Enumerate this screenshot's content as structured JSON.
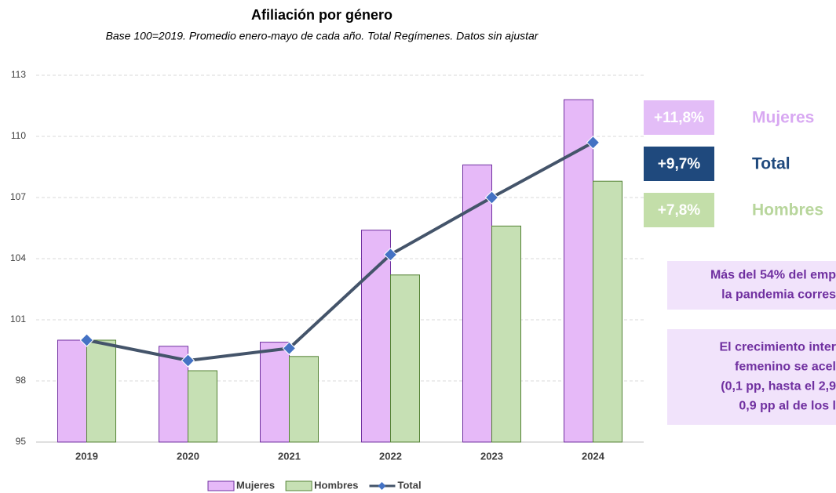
{
  "chart_data": {
    "type": "bar",
    "title": "Afiliación por género",
    "subtitle": "Base 100=2019. Promedio enero-mayo de cada año. Total Regímenes. Datos sin ajustar",
    "categories": [
      "2019",
      "2020",
      "2021",
      "2022",
      "2023",
      "2024"
    ],
    "series": [
      {
        "name": "Mujeres",
        "type": "bar",
        "color": "#e6b9f8",
        "stroke": "#7030a0",
        "values": [
          100.0,
          99.7,
          99.9,
          105.4,
          108.6,
          111.8
        ]
      },
      {
        "name": "Hombres",
        "type": "bar",
        "color": "#c6e0b4",
        "stroke": "#548235",
        "values": [
          100.0,
          98.5,
          99.2,
          103.2,
          105.6,
          107.8
        ]
      },
      {
        "name": "Total",
        "type": "line",
        "color": "#44546a",
        "marker_color": "#4472c4",
        "values": [
          100.0,
          99.0,
          99.6,
          104.2,
          107.0,
          109.7
        ]
      }
    ],
    "ylim": [
      95,
      113
    ],
    "yticks": [
      95,
      98,
      101,
      104,
      107,
      110,
      113
    ],
    "grid": true,
    "legend": "bottom",
    "annotations": [
      {
        "value_text": "+11,8%",
        "label": "Mujeres",
        "box_color": "#e3bdf7",
        "label_color": "#d8a8f2"
      },
      {
        "value_text": "+9,7%",
        "label": "Total",
        "box_color": "#1f497d",
        "label_color": "#1f497d"
      },
      {
        "value_text": "+7,8%",
        "label": "Hombres",
        "box_color": "#c3dea9",
        "label_color": "#b8d69c"
      }
    ],
    "notes": [
      [
        "Más del 54% del emp",
        "la pandemia corres"
      ],
      [
        "El crecimiento inter",
        "femenino se acel",
        "(0,1 pp, hasta el 2,9",
        "0,9 pp al de los l"
      ]
    ]
  }
}
